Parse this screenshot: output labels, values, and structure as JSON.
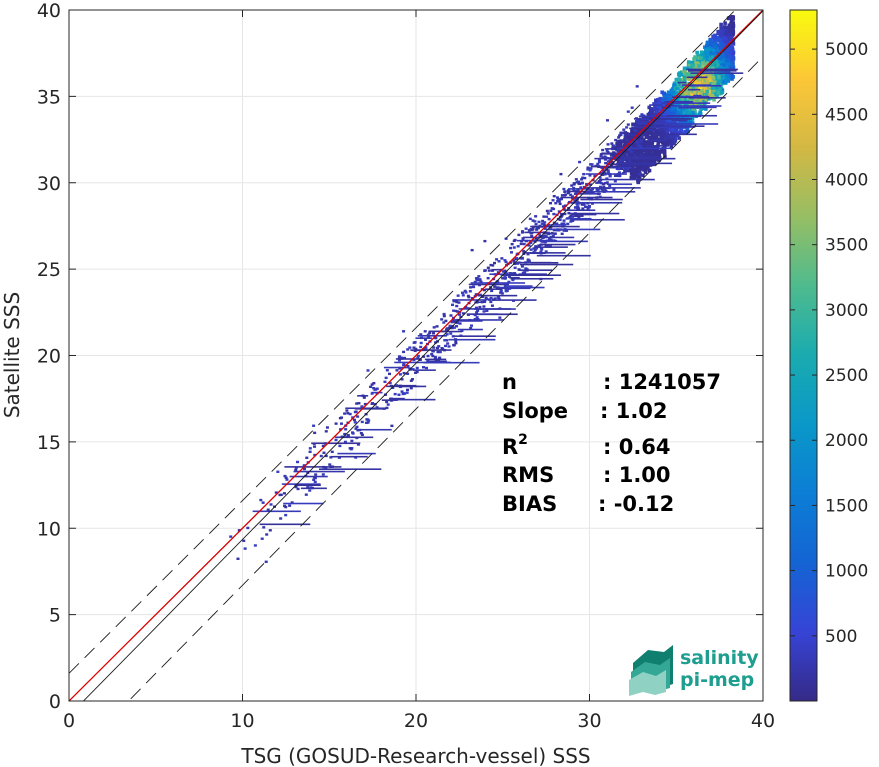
{
  "chart_data": {
    "type": "heatmap",
    "xlabel": "TSG (GOSUD-Research-vessel) SSS",
    "ylabel": "Satellite SSS",
    "xlim": [
      0,
      40
    ],
    "ylim": [
      0,
      40
    ],
    "xticks": [
      "0",
      "10",
      "20",
      "30",
      "40"
    ],
    "yticks": [
      "0",
      "5",
      "10",
      "15",
      "20",
      "25",
      "30",
      "35",
      "40"
    ],
    "grid": true,
    "colorbar": {
      "range": [
        0,
        5300
      ],
      "ticks": [
        "500",
        "1000",
        "1500",
        "2000",
        "2500",
        "3000",
        "3500",
        "4000",
        "4500",
        "5000"
      ],
      "colormap": "parula"
    },
    "lines": [
      {
        "kind": "identity",
        "color": "#dd0000",
        "slope": 1.0,
        "intercept": 0.0
      },
      {
        "kind": "regression",
        "color": "#1a1a1a",
        "slope": 1.02,
        "intercept": -0.85
      },
      {
        "kind": "upper-bound",
        "color": "#1a1a1a",
        "style": "dashed",
        "slope": 1.0,
        "intercept": 1.6
      },
      {
        "kind": "lower-bound",
        "color": "#1a1a1a",
        "style": "dashed",
        "slope": 1.02,
        "intercept": -3.5
      }
    ],
    "density_core": {
      "x": 36.2,
      "y": 35.8,
      "max_count": 5300
    },
    "stats": [
      {
        "label": "n",
        "value": ": 1241057"
      },
      {
        "label": "Slope",
        "value": ": 1.02"
      },
      {
        "label": "R",
        "sup": "2",
        "value": ": 0.64"
      },
      {
        "label": "RMS",
        "value": ": 1.00"
      },
      {
        "label": "BIAS",
        "value": ": -0.12"
      }
    ]
  },
  "logo": {
    "line1": "salinity",
    "line2": "pi-mep"
  },
  "colors": {
    "identity": "#dd0000",
    "regression": "#1a1a1a",
    "grid": "#e6e6e6",
    "logo": "#1d9e8f"
  }
}
